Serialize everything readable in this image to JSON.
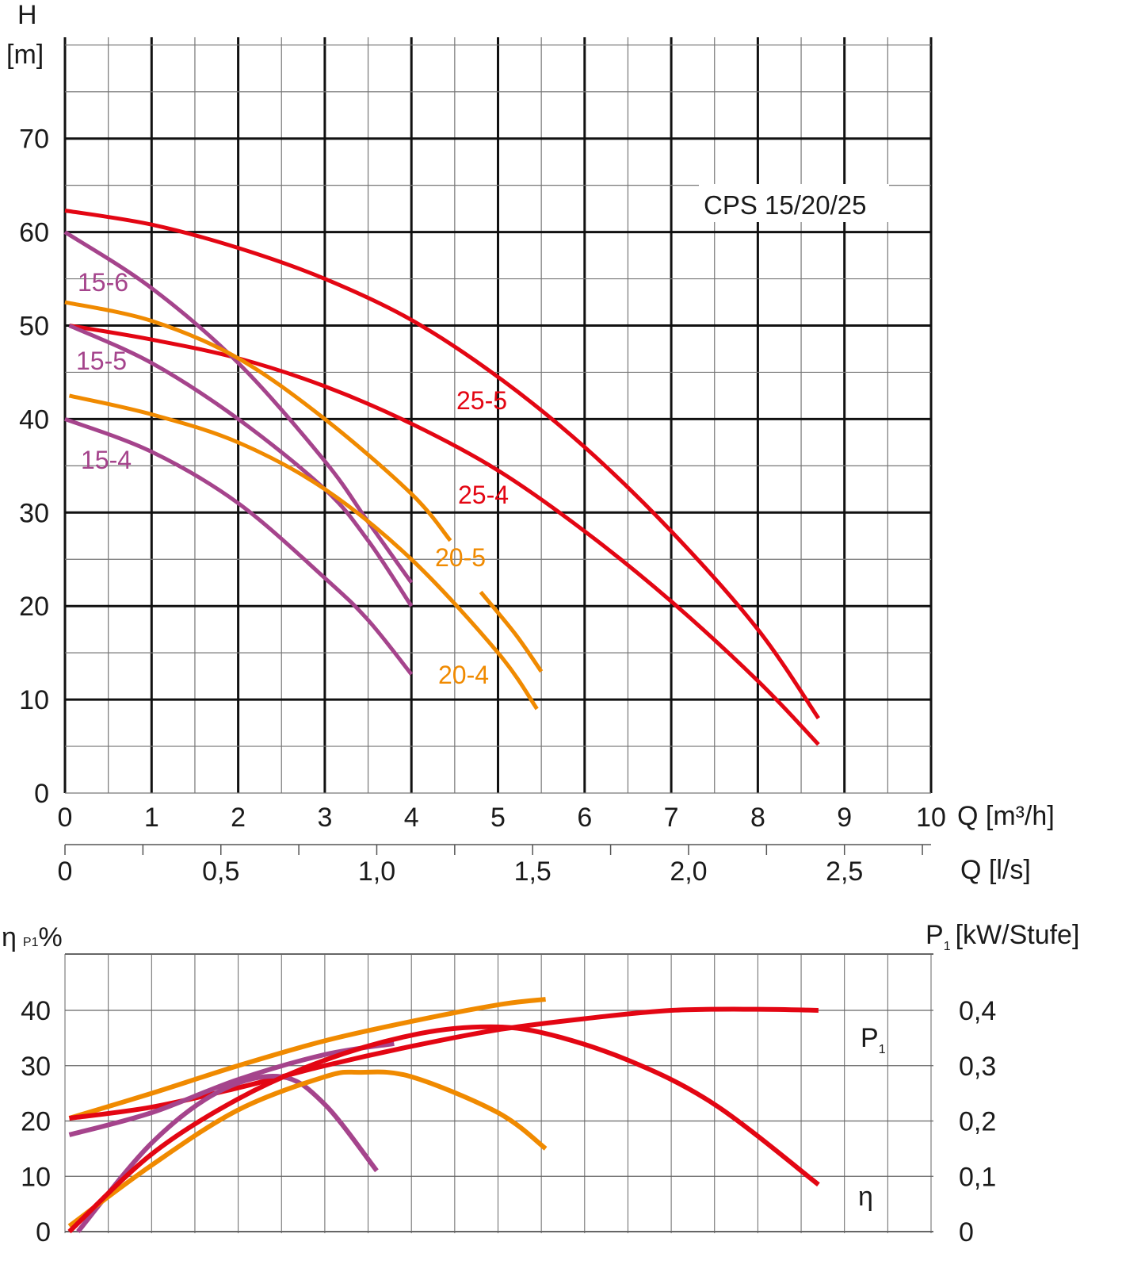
{
  "chart_data": [
    {
      "type": "line",
      "title": "CPS 15/20/25",
      "ylabel_top": "H",
      "ylabel_unit": "[m]",
      "xlabel": "Q [m³/h]",
      "xlabel_secondary": "Q [l/s]",
      "xlim": [
        0,
        10
      ],
      "ylim": [
        0,
        80
      ],
      "grid": true,
      "x_ticks": [
        "0",
        "1",
        "2",
        "3",
        "4",
        "5",
        "6",
        "7",
        "8",
        "9",
        "10"
      ],
      "y_ticks": [
        "0",
        "10",
        "20",
        "30",
        "40",
        "50",
        "60",
        "70"
      ],
      "x_secondary_ticks": [
        "0",
        "0,5",
        "1,0",
        "1,5",
        "2,0",
        "2,5"
      ],
      "colors": {
        "15": "#a5448c",
        "20": "#f08a00",
        "25": "#e30613"
      },
      "series": [
        {
          "name": "25-5",
          "color": "#e30613",
          "x": [
            0,
            1,
            2,
            3,
            4,
            5,
            6,
            7,
            8,
            8.7
          ],
          "y": [
            62.3,
            60.8,
            58.3,
            55,
            50.6,
            44.5,
            37,
            28,
            17.5,
            8
          ]
        },
        {
          "name": "25-4",
          "color": "#e30613",
          "x": [
            0.05,
            1,
            2,
            3,
            4,
            5,
            6,
            7,
            8,
            8.7
          ],
          "y": [
            50,
            48.5,
            46.5,
            43.5,
            39.5,
            34.5,
            28,
            20.5,
            12,
            5.2
          ]
        },
        {
          "name": "15-6",
          "color": "#a5448c",
          "x": [
            0,
            1,
            2,
            3,
            3.5,
            4
          ],
          "y": [
            60,
            54,
            46,
            35.5,
            29,
            22.5
          ]
        },
        {
          "name": "15-5",
          "color": "#a5448c",
          "x": [
            0.05,
            1,
            2,
            3,
            3.5,
            4
          ],
          "y": [
            50,
            46,
            40,
            32.5,
            27,
            20
          ]
        },
        {
          "name": "15-4",
          "color": "#a5448c",
          "x": [
            0,
            1,
            2,
            3,
            3.5,
            4
          ],
          "y": [
            40,
            36.5,
            31,
            23,
            18.5,
            12.7
          ]
        },
        {
          "name": "20-5",
          "color": "#f08a00",
          "x": [
            0,
            1,
            2,
            3,
            4,
            4.45,
            4.8,
            5.2,
            5.5
          ],
          "y": [
            52.5,
            50.5,
            46.5,
            40,
            32,
            27,
            21.5,
            17,
            13
          ]
        },
        {
          "name": "20-4",
          "color": "#f08a00",
          "x": [
            0.05,
            1,
            2,
            3,
            4,
            5,
            5.45
          ],
          "y": [
            42.5,
            40.5,
            37.5,
            32.5,
            25,
            15,
            9
          ]
        }
      ]
    },
    {
      "type": "line",
      "ylabel_left": "η",
      "ylabel_left_sub": "P1",
      "ylabel_left_unit": "%",
      "ylabel_right": "P",
      "ylabel_right_sub": "1",
      "ylabel_right_unit": "[kW/Stufe]",
      "ylim": [
        0,
        50
      ],
      "y_ticks": [
        "0",
        "10",
        "20",
        "30",
        "40"
      ],
      "y_right_ticks": [
        "0",
        "0,1",
        "0,2",
        "0,3",
        "0,4"
      ],
      "grid": true,
      "curve_labels": {
        "p1": "P",
        "p1_sub": "1",
        "eta": "η"
      },
      "series": [
        {
          "color": "#f08a00",
          "kind": "P1",
          "x": [
            0.05,
            1,
            2,
            3,
            4,
            5,
            5.55
          ],
          "y": [
            20.5,
            25,
            30,
            34.5,
            38,
            41,
            42
          ]
        },
        {
          "color": "#e30613",
          "kind": "P1",
          "x": [
            0.05,
            1,
            2,
            3,
            4,
            5,
            6,
            7,
            8,
            8.7
          ],
          "y": [
            20.5,
            22.5,
            26,
            30,
            33.5,
            36.5,
            38.5,
            40,
            40.2,
            40
          ]
        },
        {
          "color": "#a5448c",
          "kind": "P1",
          "x": [
            0.05,
            1,
            2,
            3,
            3.8
          ],
          "y": [
            17.5,
            21.5,
            27.5,
            32,
            34
          ]
        },
        {
          "color": "#a5448c",
          "kind": "η",
          "x": [
            0.15,
            1,
            1.8,
            2.5,
            3,
            3.6
          ],
          "y": [
            0,
            16,
            25.5,
            28,
            23,
            11
          ]
        },
        {
          "color": "#f08a00",
          "kind": "η",
          "x": [
            0.05,
            1,
            2,
            3,
            3.4,
            4,
            5,
            5.55
          ],
          "y": [
            1,
            12,
            22,
            28,
            28.8,
            28,
            21.5,
            15
          ]
        },
        {
          "color": "#e30613",
          "kind": "η",
          "x": [
            0.05,
            1,
            2,
            3,
            4,
            4.8,
            5.5,
            6.5,
            7.5,
            8.7
          ],
          "y": [
            0,
            14,
            24,
            31,
            35.5,
            37,
            36,
            31,
            23,
            8.5
          ]
        }
      ]
    }
  ]
}
